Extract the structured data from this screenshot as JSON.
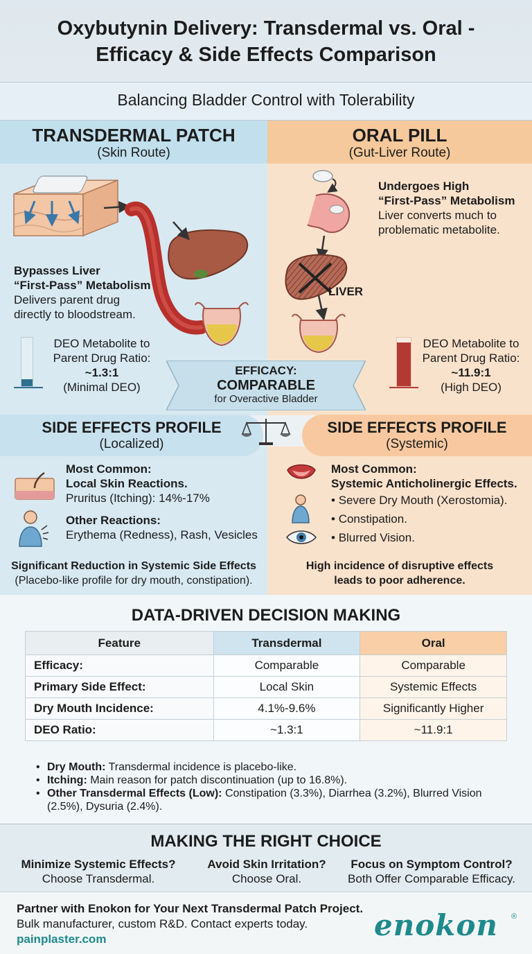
{
  "header": {
    "title_line1": "Oxybutynin Delivery: Transdermal vs. Oral -",
    "title_line2": "Efficacy & Side Effects Comparison",
    "subtitle": "Balancing Bladder Control with Tolerability"
  },
  "transdermal": {
    "title": "TRANSDERMAL PATCH",
    "sub": "(Skin Route)",
    "mech_bold1": "Bypasses Liver",
    "mech_bold2": "“First-Pass” Metabolism",
    "mech_text1": "Delivers parent drug",
    "mech_text2": "directly to bloodstream.",
    "ratio_l1": "DEO Metabolite to",
    "ratio_l2": "Parent Drug Ratio:",
    "ratio_value": "~1.3:1",
    "ratio_note": "(Minimal DEO)",
    "ratio_fill": 0.15
  },
  "oral": {
    "title": "ORAL PILL",
    "sub": "(Gut-Liver Route)",
    "mech_bold1": "Undergoes High",
    "mech_bold2": "“First-Pass” Metabolism",
    "mech_text1": "Liver converts much to",
    "mech_text2": "problematic metabolite.",
    "liver_label": "LIVER",
    "ratio_l1": "DEO Metabolite to",
    "ratio_l2": "Parent Drug Ratio:",
    "ratio_value": "~11.9:1",
    "ratio_note": "(High DEO)",
    "ratio_fill": 0.9
  },
  "efficacy": {
    "label": "EFFICACY:",
    "value": "COMPARABLE",
    "note": "for Overactive Bladder"
  },
  "side_effects_left": {
    "title": "SIDE EFFECTS PROFILE",
    "sub": "(Localized)",
    "common_h1": "Most Common:",
    "common_h2": "Local Skin Reactions.",
    "common_text": "Pruritus (Itching): 14%-17%",
    "other_h": "Other Reactions:",
    "other_text": "Erythema (Redness), Rash, Vesicles",
    "summary_bold": "Significant Reduction in Systemic Side Effects",
    "summary_text": "(Placebo-like profile for dry mouth, constipation)."
  },
  "side_effects_right": {
    "title": "SIDE EFFECTS PROFILE",
    "sub": "(Systemic)",
    "common_h1": "Most Common:",
    "common_h2": "Systemic Anticholinergic Effects.",
    "items": [
      "Severe Dry Mouth (Xerostomia).",
      "Constipation.",
      "Blurred Vision."
    ],
    "summary1": "High incidence of disruptive effects",
    "summary2": "leads to poor adherence."
  },
  "data_section": {
    "title": "DATA-DRIVEN DECISION MAKING",
    "headers": [
      "Feature",
      "Transdermal",
      "Oral"
    ],
    "rows": [
      [
        "Efficacy:",
        "Comparable",
        "Comparable"
      ],
      [
        "Primary Side Effect:",
        "Local Skin",
        "Systemic Effects"
      ],
      [
        "Dry Mouth Incidence:",
        "4.1%-9.6%",
        "Significantly Higher"
      ],
      [
        "DEO Ratio:",
        "~1.3:1",
        "~11.9:1"
      ]
    ],
    "notes": [
      {
        "bold": "Dry Mouth:",
        "text": " Transdermal incidence is placebo-like."
      },
      {
        "bold": "Itching:",
        "text": " Main reason for patch discontinuation (up to 16.8%)."
      },
      {
        "bold": "Other Transdermal Effects (Low):",
        "text": " Constipation (3.3%), Diarrhea (3.2%), Blurred Vision (2.5%), Dysuria (2.4%)."
      }
    ]
  },
  "choice": {
    "title": "MAKING THE RIGHT CHOICE",
    "items": [
      {
        "q": "Minimize Systemic Effects?",
        "a": "Choose Transdermal."
      },
      {
        "q": "Avoid Skin Irritation?",
        "a": "Choose Oral."
      },
      {
        "q": "Focus on Symptom Control?",
        "a": "Both Offer Comparable Efficacy."
      }
    ]
  },
  "footer": {
    "line1": "Partner with Enokon for Your Next Transdermal Patch Project.",
    "line2": "Bulk manufacturer, custom R&D. Contact experts today.",
    "link": "painplaster.com",
    "logo": "enokon",
    "logo_reg": "®"
  },
  "colors": {
    "accent": "#1e8a8c",
    "blood": "#b8302c",
    "liver": "#a85a45",
    "bar_low": "#2e6f8f",
    "bar_high": "#b33a34"
  }
}
